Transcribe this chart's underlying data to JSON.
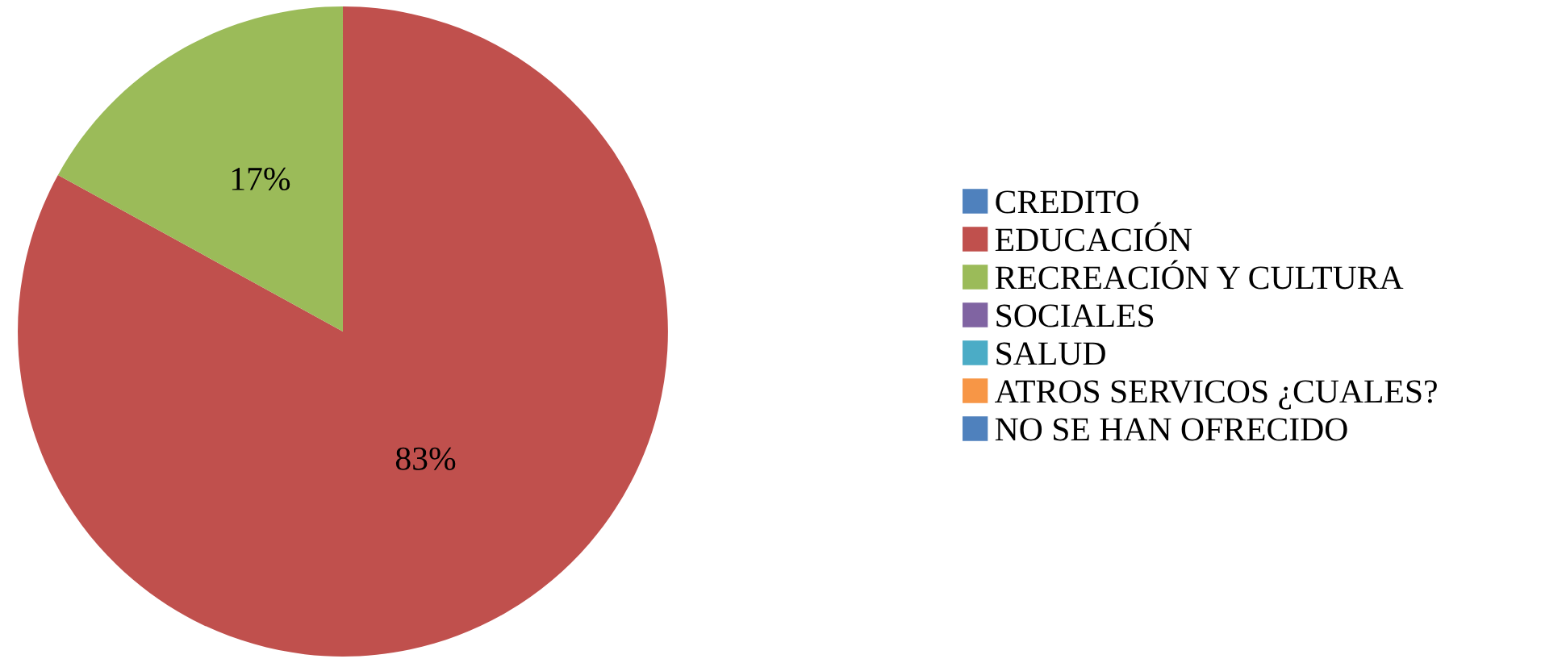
{
  "chart_data": {
    "type": "pie",
    "categories": [
      "CREDITO",
      "EDUCACIÓN",
      "RECREACIÓN Y CULTURA",
      "SOCIALES",
      "SALUD",
      "ATROS SERVICOS ¿CUALES?",
      "NO SE HAN OFRECIDO"
    ],
    "values": [
      0,
      83,
      17,
      0,
      0,
      0,
      0
    ],
    "value_labels": [
      null,
      "83%",
      "17%",
      null,
      null,
      null,
      null
    ],
    "colors": [
      "#4f81bd",
      "#c0504d",
      "#9bbb59",
      "#8064a2",
      "#4bacc6",
      "#f79646",
      "#4f81bd"
    ],
    "legend": "right"
  }
}
